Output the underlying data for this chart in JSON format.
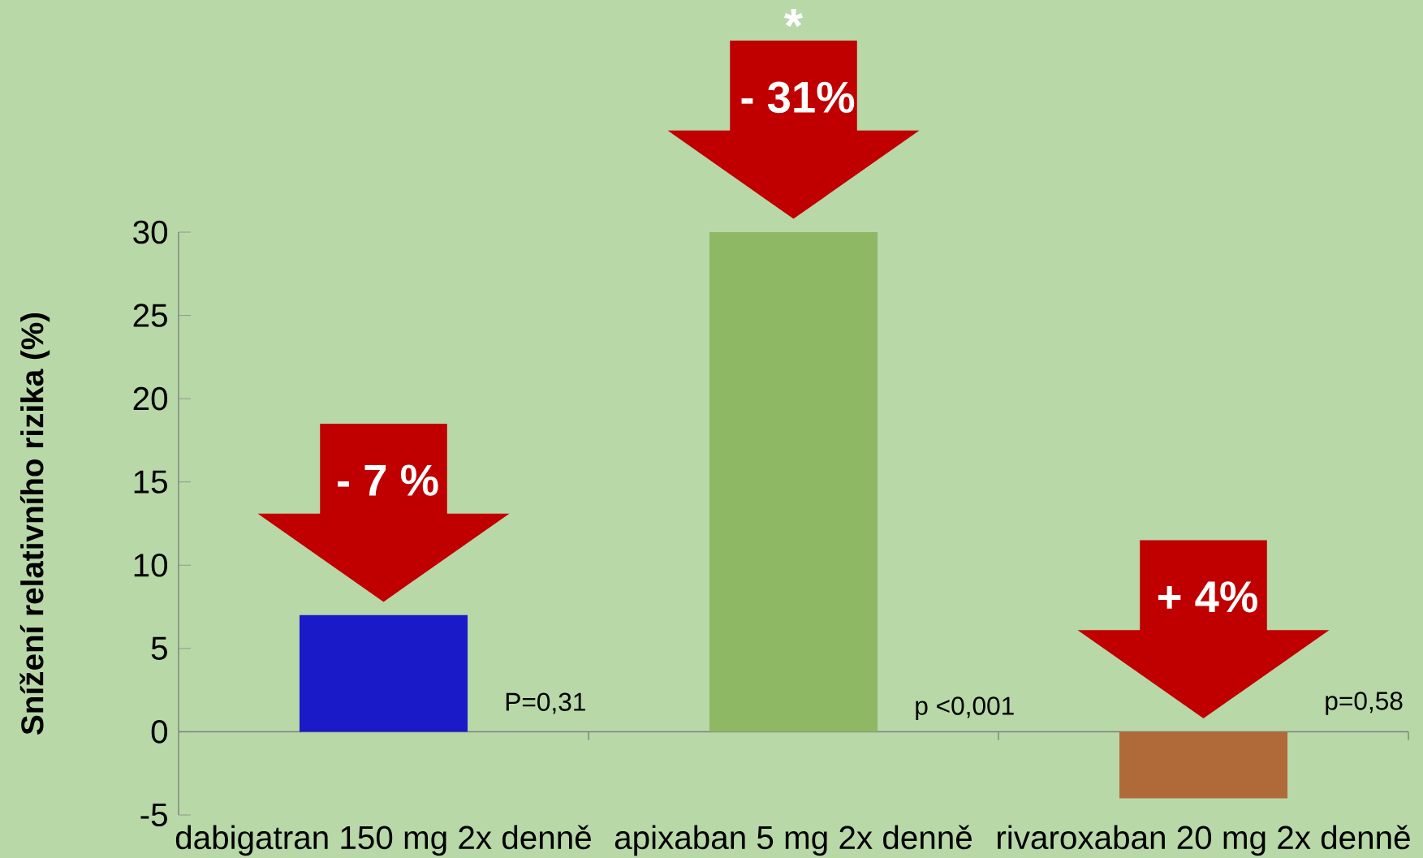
{
  "chart_data": {
    "type": "bar",
    "ylabel": "Snížení relativního rizika (%)",
    "categories": [
      "dabigatran 150 mg 2x denně",
      "apixaban 5 mg 2x denně",
      "rivaroxaban 20 mg 2x denně"
    ],
    "values": [
      7,
      30,
      -4
    ],
    "colors": [
      "#1a1ac8",
      "#8fb865",
      "#b06a3a"
    ],
    "ylim": [
      -5,
      30
    ],
    "yticks": [
      -5,
      0,
      5,
      10,
      15,
      20,
      25,
      30
    ],
    "annotations": [
      "- 7 %",
      "- 31%",
      "+ 4%",
      "P=0,31",
      "p <0,001",
      "p=0,58",
      "*"
    ]
  }
}
